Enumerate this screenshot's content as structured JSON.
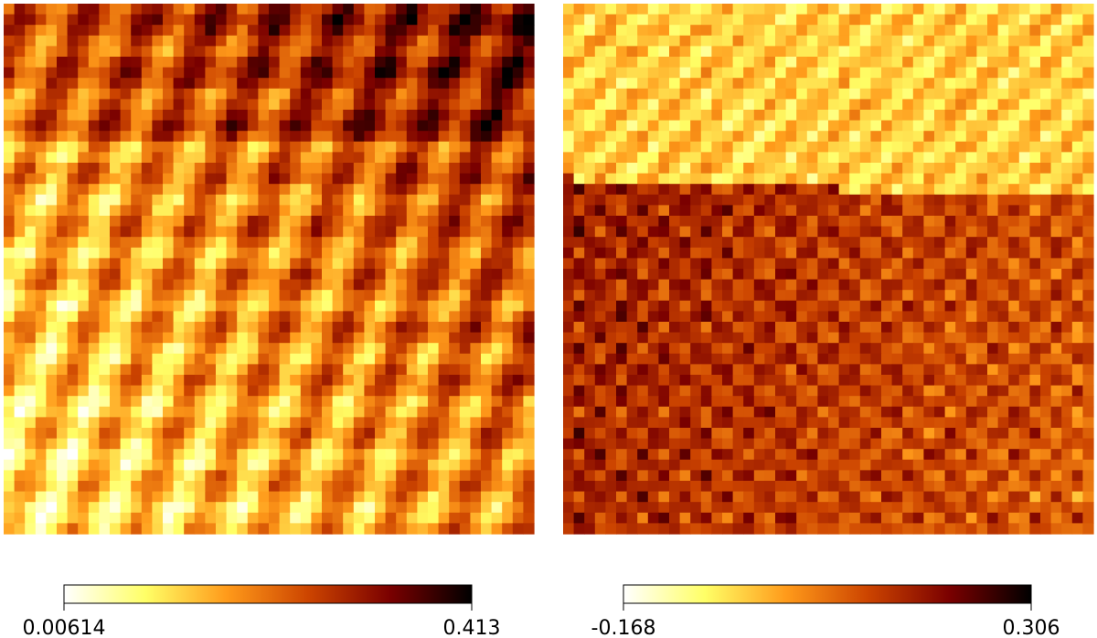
{
  "chart_data": [
    {
      "type": "heatmap",
      "colormap": [
        "#ffffff",
        "#ffff66",
        "#ff9a1a",
        "#cc4400",
        "#7a0000",
        "#000000"
      ],
      "zlim": [
        0.00614,
        0.413
      ],
      "zticks": [
        0.00614,
        0.413
      ]
    },
    {
      "type": "heatmap",
      "colormap": [
        "#ffffff",
        "#ffff66",
        "#ff9a1a",
        "#cc4400",
        "#7a0000",
        "#000000"
      ],
      "zlim": [
        -0.168,
        0.306
      ],
      "zticks": [
        -0.168,
        0.306
      ]
    }
  ]
}
